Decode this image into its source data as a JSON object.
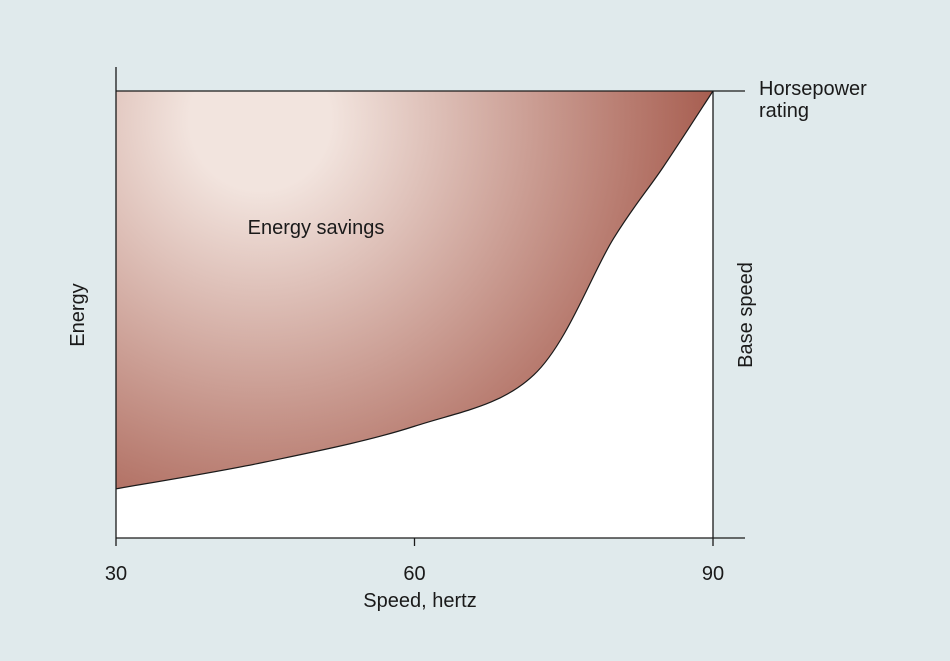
{
  "chart_data": {
    "type": "area",
    "title": "",
    "xlabel": "Speed, hertz",
    "ylabel": "Energy",
    "xlim": [
      30,
      90
    ],
    "ylim": [
      0,
      1
    ],
    "x_ticks": [
      "30",
      "60",
      "90"
    ],
    "grid": false,
    "curve": {
      "x": [
        30,
        45,
        60,
        72,
        80,
        85,
        90
      ],
      "y": [
        0.11,
        0.17,
        0.25,
        0.365,
        0.67,
        0.83,
        1.0
      ]
    },
    "annotations": {
      "region": "Energy savings",
      "top_line": "Horsepower rating",
      "right_line": "Base speed"
    },
    "colors": {
      "background": "#e0eaec",
      "fill_light": "#f2e4de",
      "fill_dark": "#a4584a",
      "plot_bg": "#ffffff"
    }
  }
}
